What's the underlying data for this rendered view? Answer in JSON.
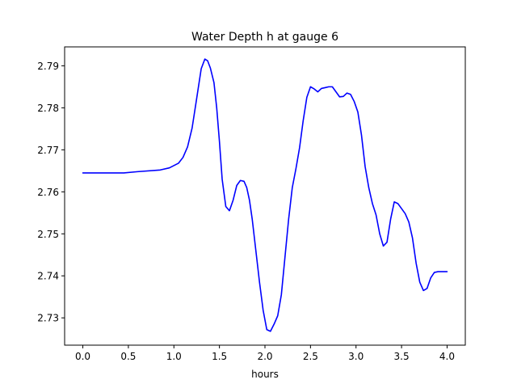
{
  "chart_data": {
    "type": "line",
    "title": "Water Depth h at gauge 6",
    "xlabel": "hours",
    "ylabel": "",
    "xlim": [
      -0.2,
      4.2
    ],
    "ylim": [
      2.7235,
      2.7945
    ],
    "grid": false,
    "x_ticks": [
      0.0,
      0.5,
      1.0,
      1.5,
      2.0,
      2.5,
      3.0,
      3.5,
      4.0
    ],
    "x_tick_labels": [
      "0.0",
      "0.5",
      "1.0",
      "1.5",
      "2.0",
      "2.5",
      "3.0",
      "3.5",
      "4.0"
    ],
    "y_ticks": [
      2.73,
      2.74,
      2.75,
      2.76,
      2.77,
      2.78,
      2.79
    ],
    "y_tick_labels": [
      "2.73",
      "2.74",
      "2.75",
      "2.76",
      "2.77",
      "2.78",
      "2.79"
    ],
    "series": [
      {
        "color": "#0000ff",
        "x": [
          0.0,
          0.2,
          0.45,
          0.6,
          0.85,
          0.95,
          1.05,
          1.1,
          1.15,
          1.2,
          1.25,
          1.3,
          1.34,
          1.37,
          1.4,
          1.44,
          1.47,
          1.5,
          1.53,
          1.57,
          1.61,
          1.65,
          1.69,
          1.73,
          1.77,
          1.8,
          1.83,
          1.86,
          1.9,
          1.94,
          1.98,
          2.02,
          2.06,
          2.1,
          2.14,
          2.18,
          2.22,
          2.26,
          2.3,
          2.34,
          2.38,
          2.42,
          2.46,
          2.5,
          2.54,
          2.58,
          2.62,
          2.66,
          2.7,
          2.74,
          2.78,
          2.82,
          2.86,
          2.9,
          2.94,
          2.98,
          3.02,
          3.06,
          3.1,
          3.14,
          3.18,
          3.22,
          3.26,
          3.3,
          3.34,
          3.38,
          3.42,
          3.46,
          3.5,
          3.54,
          3.58,
          3.62,
          3.66,
          3.7,
          3.74,
          3.78,
          3.82,
          3.86,
          3.9,
          3.94,
          3.98,
          4.0
        ],
        "y": [
          2.7645,
          2.7645,
          2.7645,
          2.7648,
          2.7652,
          2.7657,
          2.7668,
          2.7682,
          2.7707,
          2.7752,
          2.7822,
          2.7893,
          2.7916,
          2.7912,
          2.7895,
          2.786,
          2.78,
          2.772,
          2.763,
          2.7565,
          2.7555,
          2.758,
          2.7615,
          2.7627,
          2.7625,
          2.761,
          2.758,
          2.7535,
          2.746,
          2.7385,
          2.7318,
          2.7272,
          2.7268,
          2.7285,
          2.7305,
          2.7355,
          2.7445,
          2.7535,
          2.761,
          2.7655,
          2.7705,
          2.777,
          2.7825,
          2.785,
          2.7845,
          2.7838,
          2.7846,
          2.7848,
          2.785,
          2.785,
          2.7838,
          2.7826,
          2.7827,
          2.7835,
          2.7832,
          2.7815,
          2.779,
          2.7735,
          2.766,
          2.761,
          2.7572,
          2.7545,
          2.75,
          2.7471,
          2.748,
          2.7535,
          2.7576,
          2.7572,
          2.756,
          2.7548,
          2.7528,
          2.749,
          2.743,
          2.7385,
          2.7365,
          2.737,
          2.7395,
          2.7408,
          2.741,
          2.741,
          2.741,
          2.741
        ]
      }
    ]
  }
}
